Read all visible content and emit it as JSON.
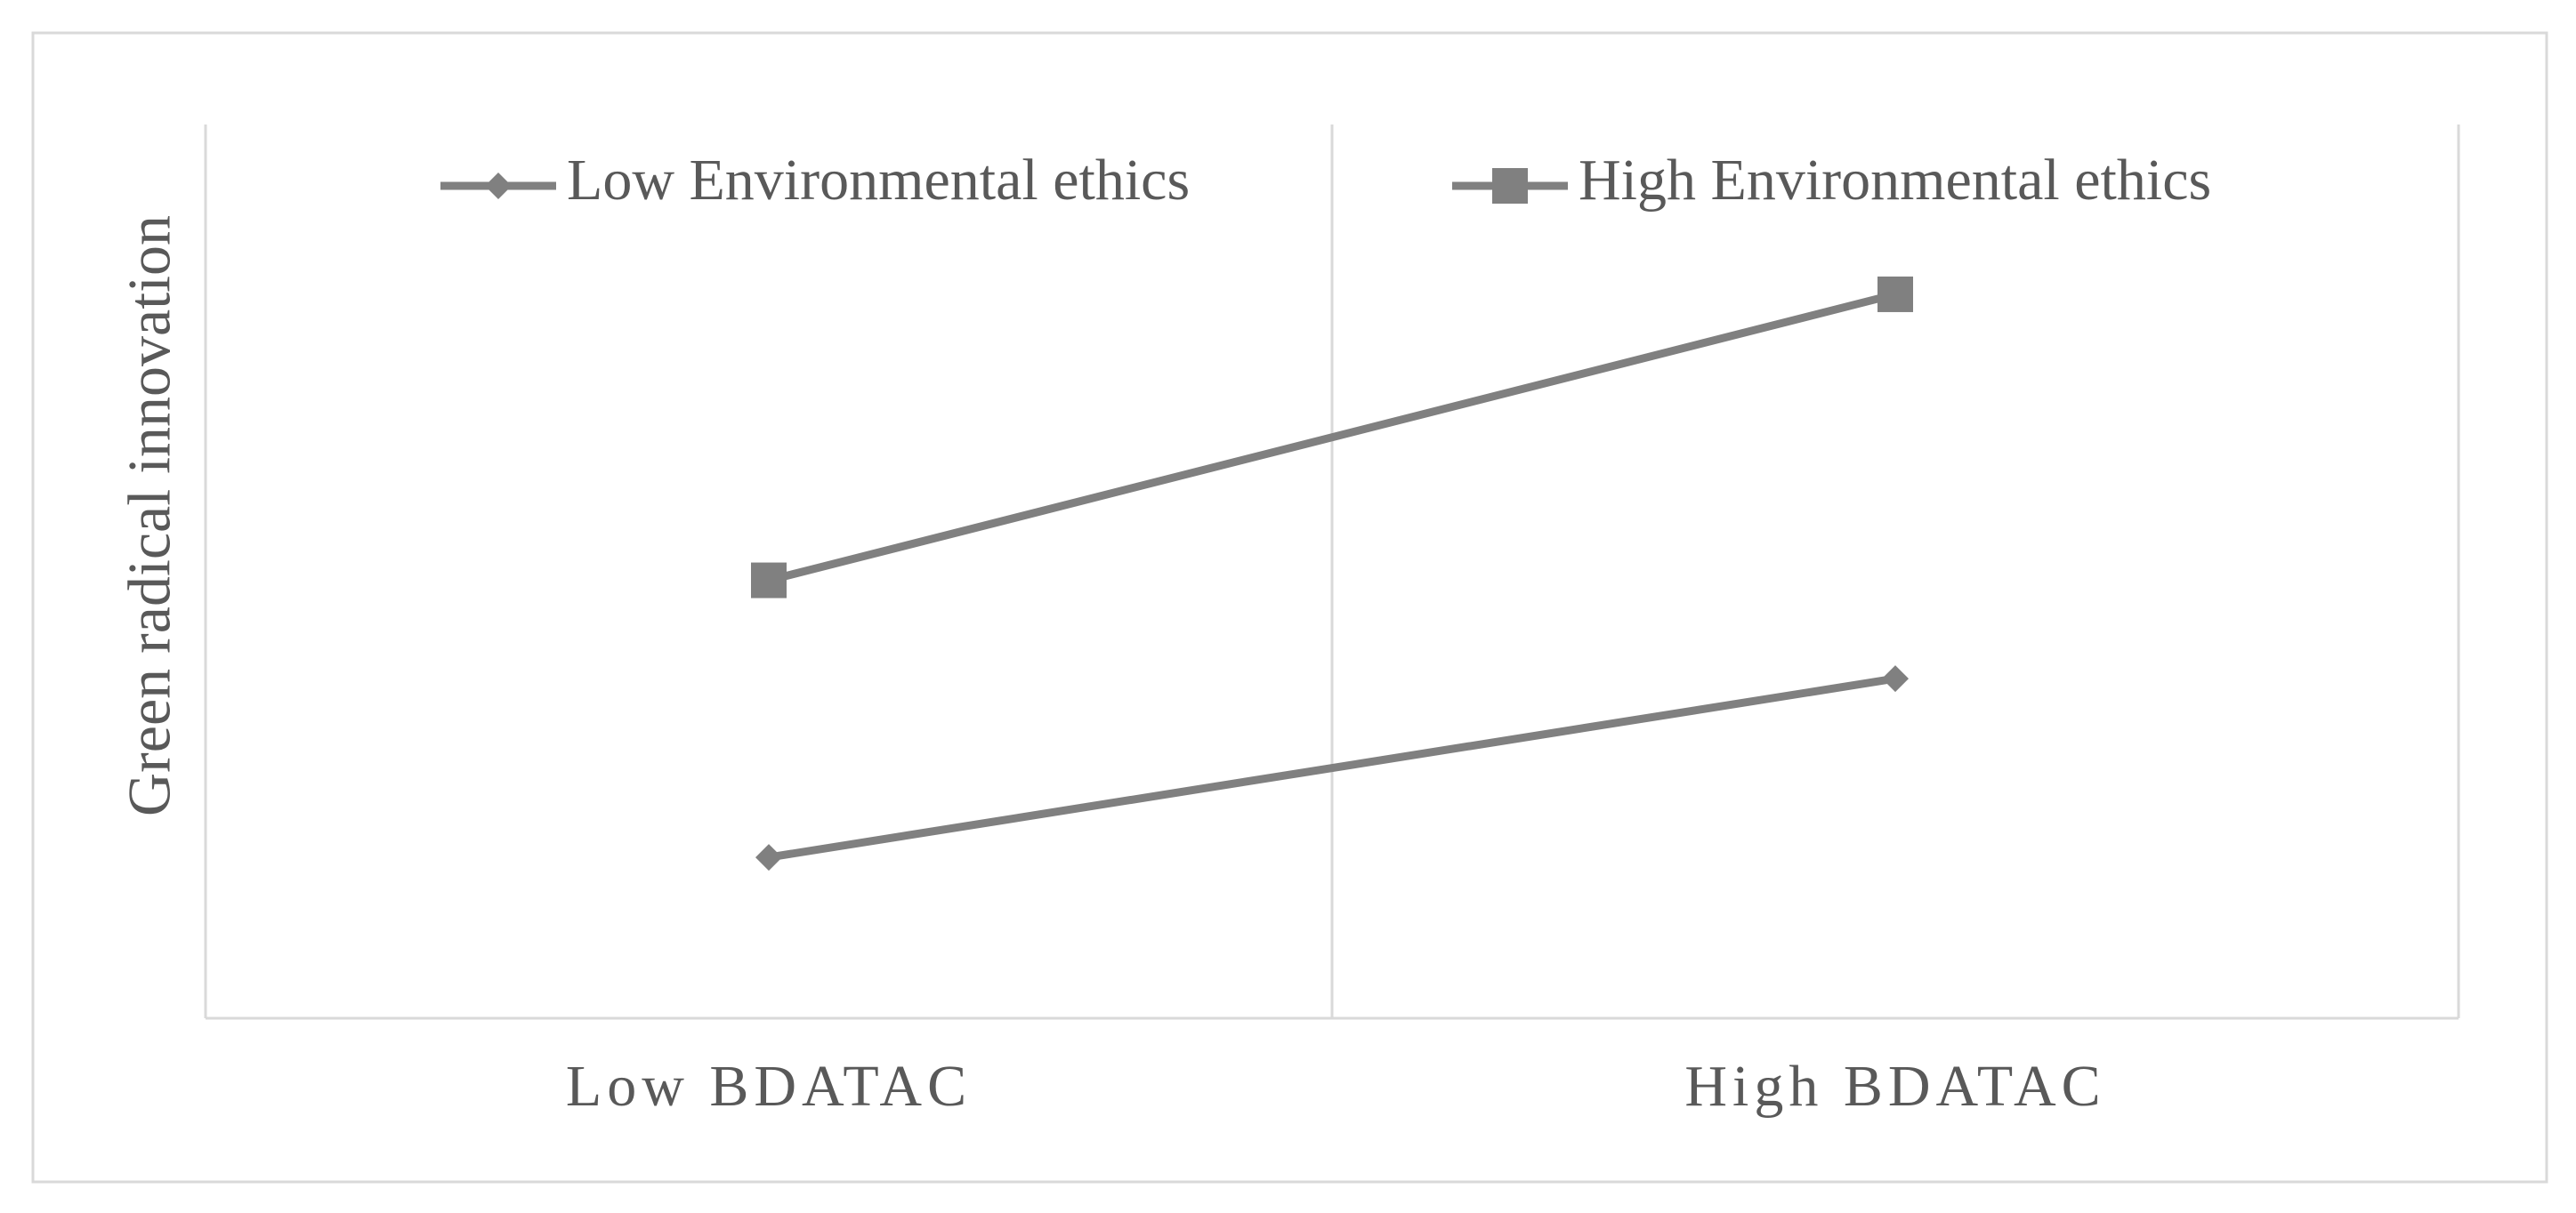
{
  "chart_data": {
    "type": "line",
    "y_label": "Green radical innovation",
    "categories": [
      "Low BDATAC",
      "High BDATAC"
    ],
    "series": [
      {
        "name": "Low Environmental ethics",
        "color": "#808080",
        "marker": "diamond",
        "values": [
          1.8,
          3.8
        ]
      },
      {
        "name": "High Environmental ethics",
        "color": "#808080",
        "marker": "square",
        "values": [
          4.9,
          8.1
        ]
      }
    ],
    "ylim": [
      0,
      10
    ],
    "legend": "top"
  }
}
